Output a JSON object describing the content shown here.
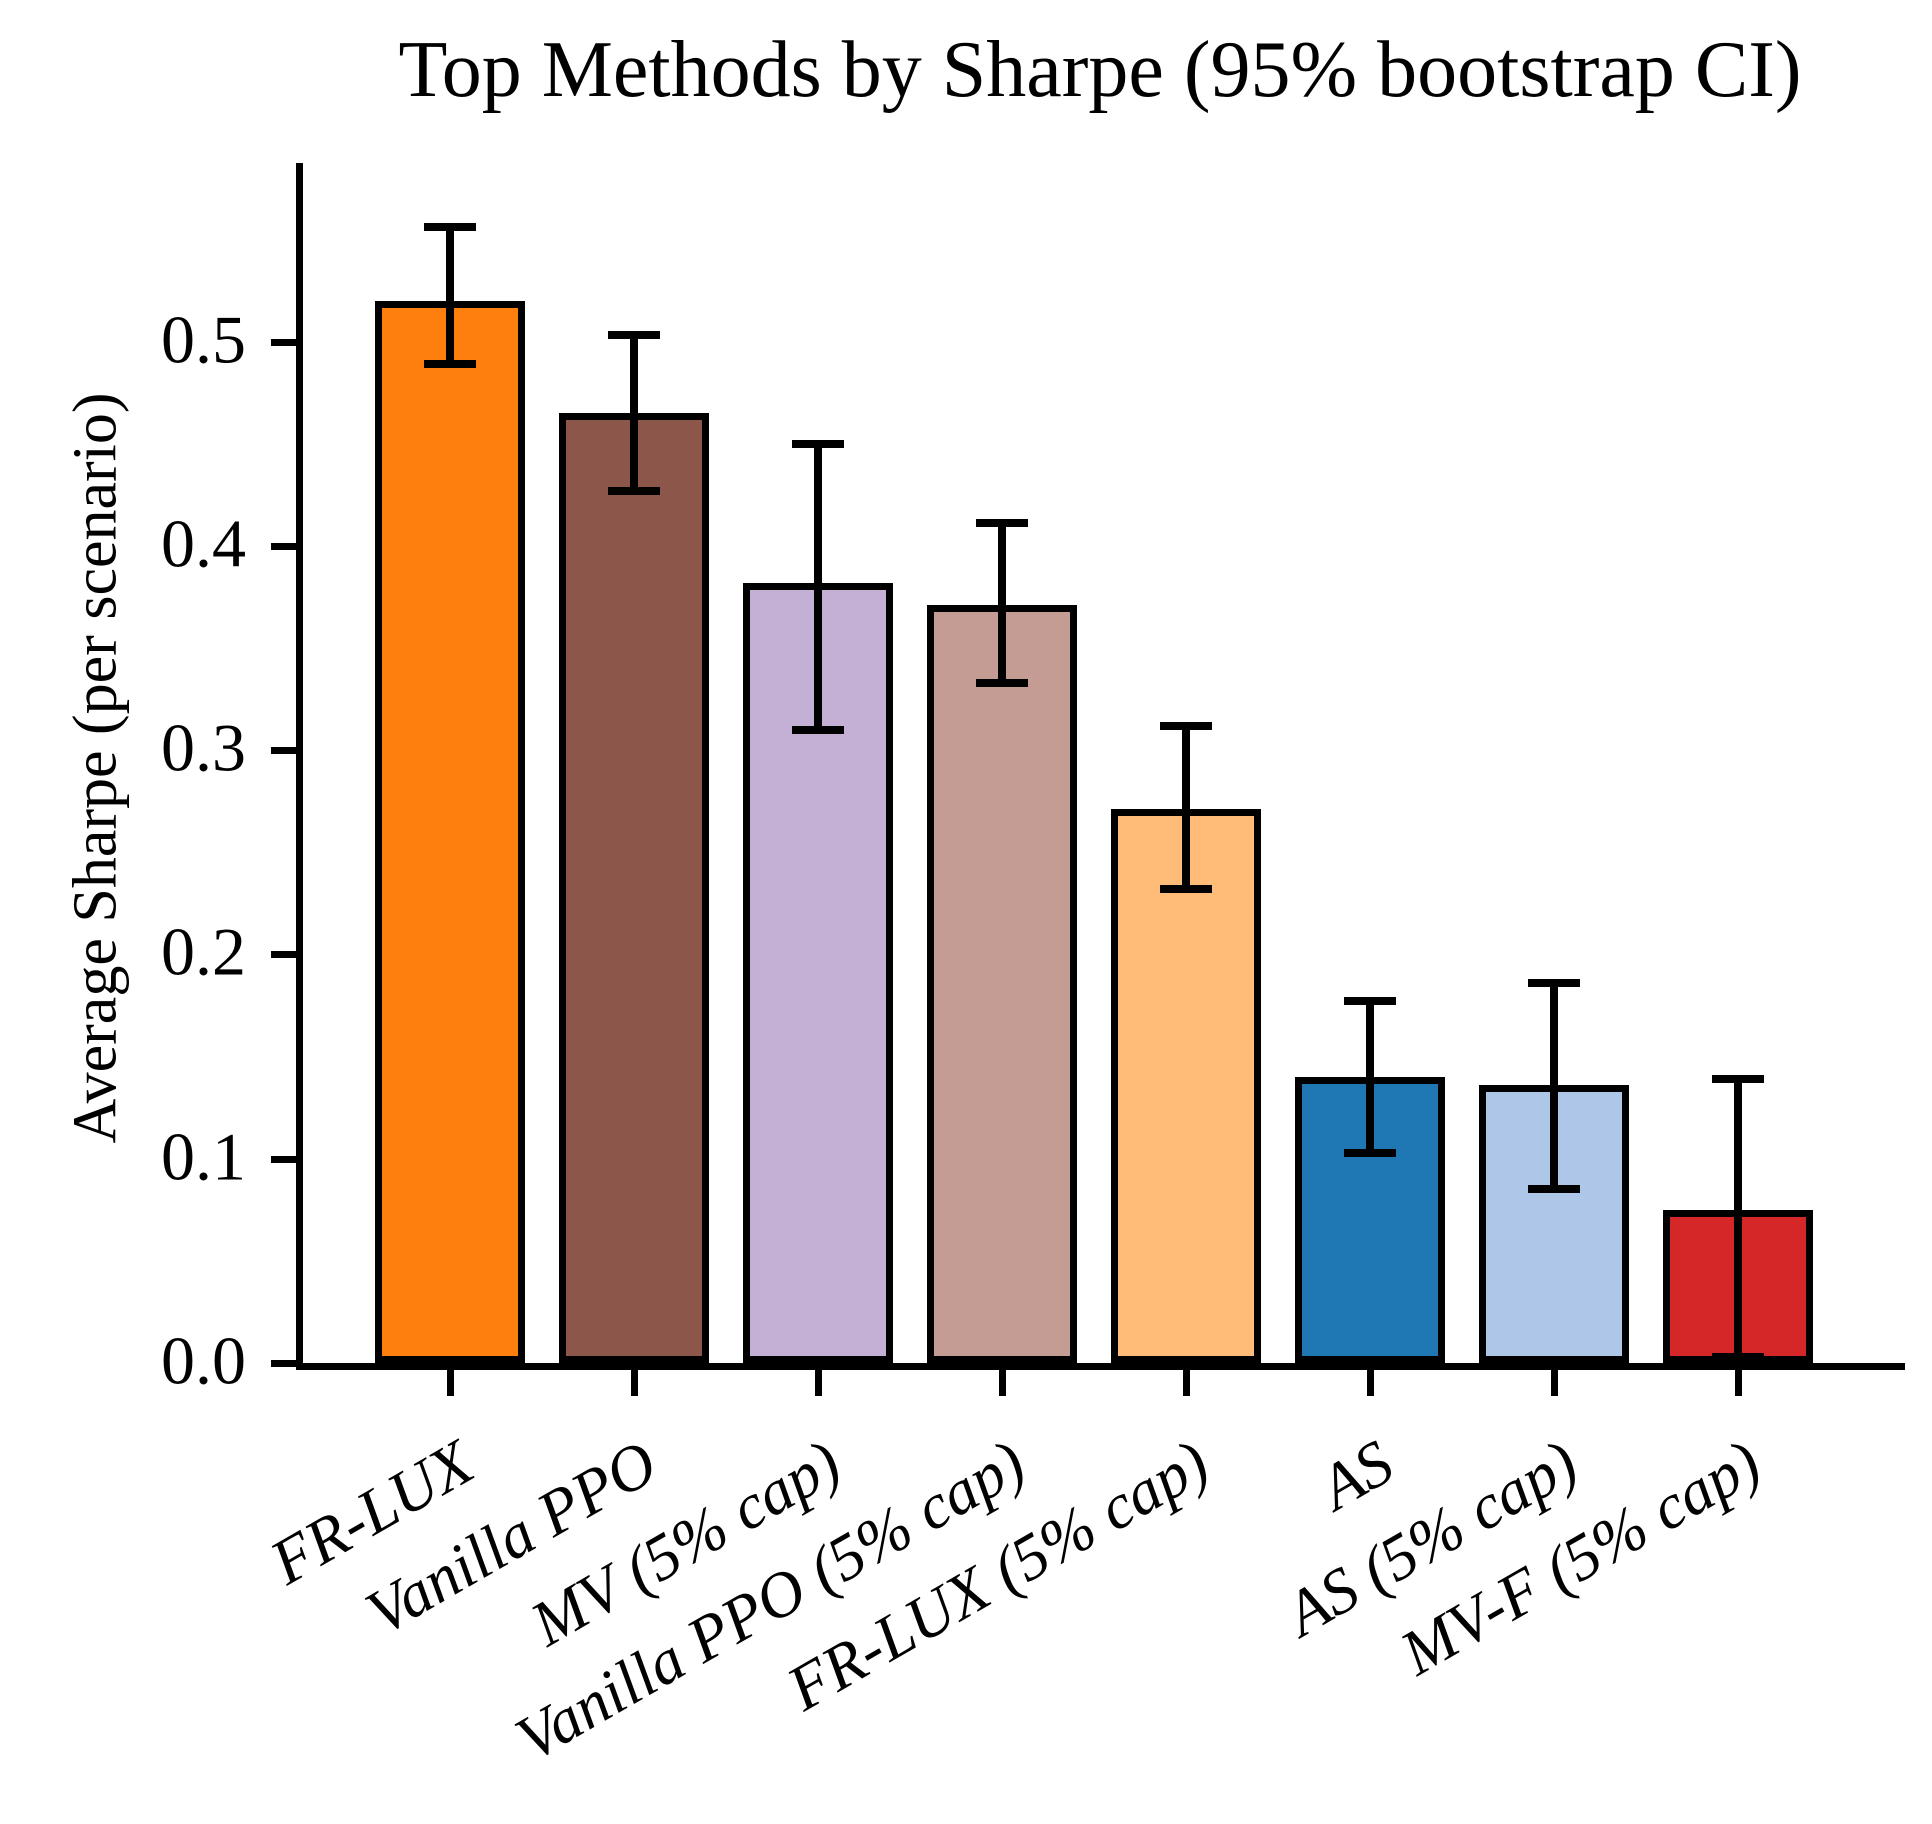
{
  "figure": {
    "title": "Top Methods by Sharpe (95% bootstrap CI)",
    "ylabel": "Average Sharpe (per scenario)"
  },
  "chart_data": {
    "type": "bar",
    "title": "Top Methods by Sharpe (95% bootstrap CI)",
    "xlabel": "",
    "ylabel": "Average Sharpe (per scenario)",
    "categories": [
      "FR-LUX",
      "Vanilla PPO",
      "MV (5% cap)",
      "Vanilla PPO (5% cap)",
      "FR-LUX (5% cap)",
      "AS",
      "AS (5% cap)",
      "MV-F (5% cap)"
    ],
    "values": [
      0.52,
      0.465,
      0.382,
      0.371,
      0.271,
      0.14,
      0.136,
      0.075
    ],
    "ci_low": [
      0.489,
      0.427,
      0.31,
      0.333,
      0.232,
      0.103,
      0.085,
      0.003
    ],
    "ci_high": [
      0.556,
      0.503,
      0.45,
      0.411,
      0.312,
      0.177,
      0.186,
      0.139
    ],
    "bar_colors": [
      "#FF7F0E",
      "#8C564B",
      "#C5B0D5",
      "#C49C94",
      "#FFBB78",
      "#1F77B4",
      "#AEC7E8",
      "#D62728"
    ],
    "bar_edge_color": "#000000",
    "error_bar_color": "#000000",
    "yticks": {
      "values": [
        0.0,
        0.1,
        0.2,
        0.3,
        0.4,
        0.5
      ],
      "labels": [
        "0.0",
        "0.1",
        "0.2",
        "0.3",
        "0.4",
        "0.5"
      ]
    },
    "ylim": [
      0,
      0.585
    ],
    "grid": false,
    "legend_position": "none"
  }
}
